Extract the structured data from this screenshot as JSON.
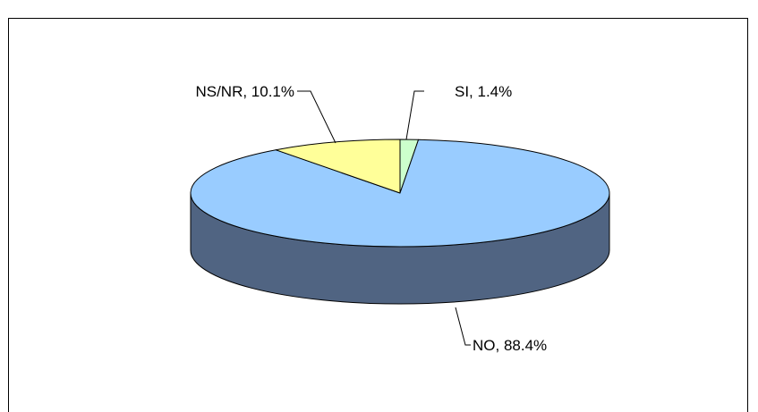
{
  "chart_data": {
    "type": "pie",
    "title": "",
    "slices": [
      {
        "label": "SI",
        "value": 1.4,
        "display": "SI, 1.4%",
        "color": "#ccffcc",
        "side_color": "#99cc99"
      },
      {
        "label": "NO",
        "value": 88.4,
        "display": "NO, 88.4%",
        "color": "#99ccff",
        "side_color": "#506482"
      },
      {
        "label": "NS/NR",
        "value": 10.1,
        "display": "NS/NR, 10.1%",
        "color": "#ffff99",
        "side_color": "#b3b36b"
      }
    ],
    "start_angle_deg": 0,
    "direction": "clockwise",
    "style": "3d",
    "legend": "none",
    "plot_border": true
  }
}
